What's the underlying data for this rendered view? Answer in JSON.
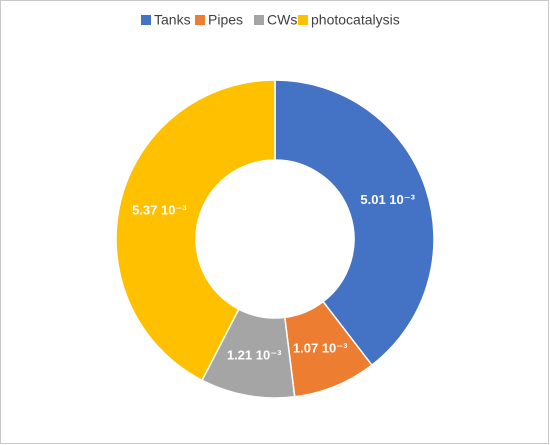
{
  "chart_data": {
    "type": "donut",
    "categories": [
      "Tanks",
      "Pipes",
      "CWs",
      "photocatalysis"
    ],
    "values": [
      0.00501,
      0.00107,
      0.00121,
      0.00537
    ],
    "value_labels": [
      "5.01 10⁻³",
      "1.07 10⁻³",
      "1.21 10⁻³",
      "5.37 10⁻³"
    ],
    "colors": [
      "#4472c4",
      "#ed7d31",
      "#a5a5a5",
      "#ffc000"
    ],
    "legend": "top"
  }
}
